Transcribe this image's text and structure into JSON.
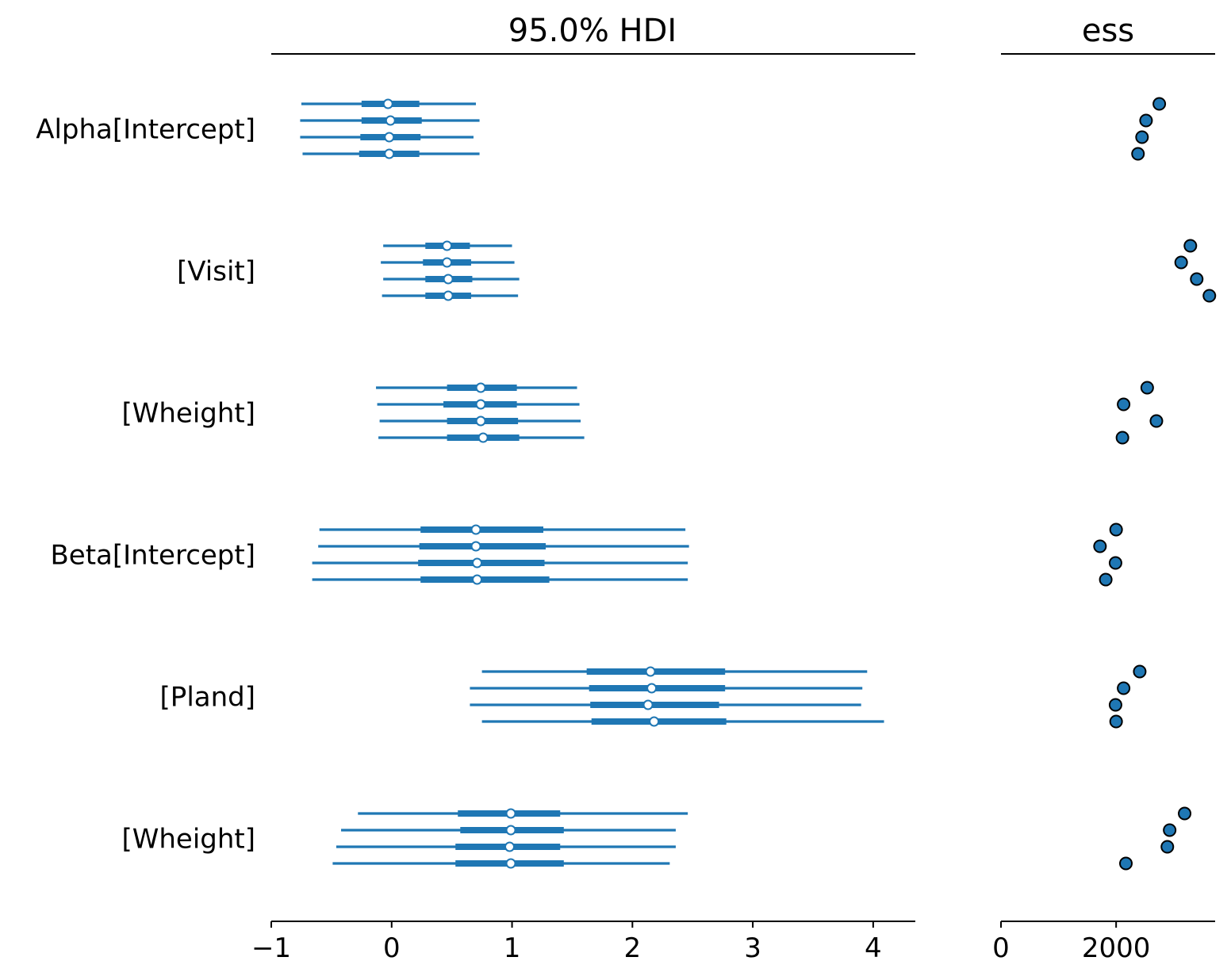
{
  "chart_data": {
    "type": "forest",
    "grid": false,
    "legend": "none",
    "rows": [
      "Alpha[Intercept]",
      "[Visit]",
      "[Wheight]",
      "Beta[Intercept]",
      "[Pland]",
      "[Wheight]"
    ],
    "colors": {
      "interval": "#1f77b4",
      "median_fill": "#ffffff",
      "ess_marker": "#1f77b4",
      "ess_edge": "#000000",
      "axis": "#000000"
    },
    "hdi_panel": {
      "title": "95.0% HDI",
      "xlim": [
        -1,
        4.35
      ],
      "xticks": [
        -1,
        0,
        1,
        2,
        3,
        4
      ],
      "xtick_labels": [
        "−1",
        "0",
        "1",
        "2",
        "3",
        "4"
      ],
      "series": [
        {
          "row": 0,
          "chains": [
            {
              "hdi95": [
                -0.75,
                0.7
              ],
              "hdi50": [
                -0.25,
                0.23
              ],
              "median": -0.03
            },
            {
              "hdi95": [
                -0.76,
                0.73
              ],
              "hdi50": [
                -0.25,
                0.25
              ],
              "median": -0.01
            },
            {
              "hdi95": [
                -0.76,
                0.68
              ],
              "hdi50": [
                -0.26,
                0.24
              ],
              "median": -0.02
            },
            {
              "hdi95": [
                -0.74,
                0.73
              ],
              "hdi50": [
                -0.27,
                0.23
              ],
              "median": -0.02
            }
          ]
        },
        {
          "row": 1,
          "chains": [
            {
              "hdi95": [
                -0.07,
                1.0
              ],
              "hdi50": [
                0.28,
                0.65
              ],
              "median": 0.46
            },
            {
              "hdi95": [
                -0.09,
                1.02
              ],
              "hdi50": [
                0.26,
                0.66
              ],
              "median": 0.46
            },
            {
              "hdi95": [
                -0.07,
                1.06
              ],
              "hdi50": [
                0.28,
                0.67
              ],
              "median": 0.47
            },
            {
              "hdi95": [
                -0.08,
                1.05
              ],
              "hdi50": [
                0.28,
                0.66
              ],
              "median": 0.47
            }
          ]
        },
        {
          "row": 2,
          "chains": [
            {
              "hdi95": [
                -0.13,
                1.54
              ],
              "hdi50": [
                0.46,
                1.04
              ],
              "median": 0.74
            },
            {
              "hdi95": [
                -0.12,
                1.56
              ],
              "hdi50": [
                0.43,
                1.04
              ],
              "median": 0.74
            },
            {
              "hdi95": [
                -0.1,
                1.57
              ],
              "hdi50": [
                0.46,
                1.05
              ],
              "median": 0.74
            },
            {
              "hdi95": [
                -0.11,
                1.6
              ],
              "hdi50": [
                0.46,
                1.06
              ],
              "median": 0.76
            }
          ]
        },
        {
          "row": 3,
          "chains": [
            {
              "hdi95": [
                -0.6,
                2.44
              ],
              "hdi50": [
                0.24,
                1.26
              ],
              "median": 0.7
            },
            {
              "hdi95": [
                -0.61,
                2.47
              ],
              "hdi50": [
                0.23,
                1.28
              ],
              "median": 0.7
            },
            {
              "hdi95": [
                -0.66,
                2.46
              ],
              "hdi50": [
                0.22,
                1.27
              ],
              "median": 0.71
            },
            {
              "hdi95": [
                -0.66,
                2.46
              ],
              "hdi50": [
                0.24,
                1.31
              ],
              "median": 0.71
            }
          ]
        },
        {
          "row": 4,
          "chains": [
            {
              "hdi95": [
                0.75,
                3.95
              ],
              "hdi50": [
                1.62,
                2.77
              ],
              "median": 2.15
            },
            {
              "hdi95": [
                0.65,
                3.91
              ],
              "hdi50": [
                1.64,
                2.77
              ],
              "median": 2.16
            },
            {
              "hdi95": [
                0.65,
                3.9
              ],
              "hdi50": [
                1.65,
                2.72
              ],
              "median": 2.13
            },
            {
              "hdi95": [
                0.75,
                4.09
              ],
              "hdi50": [
                1.66,
                2.78
              ],
              "median": 2.18
            }
          ]
        },
        {
          "row": 5,
          "chains": [
            {
              "hdi95": [
                -0.28,
                2.46
              ],
              "hdi50": [
                0.55,
                1.4
              ],
              "median": 0.99
            },
            {
              "hdi95": [
                -0.42,
                2.36
              ],
              "hdi50": [
                0.57,
                1.43
              ],
              "median": 0.99
            },
            {
              "hdi95": [
                -0.46,
                2.36
              ],
              "hdi50": [
                0.53,
                1.4
              ],
              "median": 0.98
            },
            {
              "hdi95": [
                -0.49,
                2.31
              ],
              "hdi50": [
                0.53,
                1.43
              ],
              "median": 0.99
            }
          ]
        }
      ]
    },
    "ess_panel": {
      "title": "ess",
      "xlim": [
        0,
        3720
      ],
      "xticks": [
        0,
        2000
      ],
      "xtick_labels": [
        "0",
        "2000"
      ],
      "series": [
        {
          "row": 0,
          "values": [
            2750,
            2520,
            2450,
            2380
          ]
        },
        {
          "row": 1,
          "values": [
            3290,
            3130,
            3400,
            3620
          ]
        },
        {
          "row": 2,
          "values": [
            2540,
            2130,
            2700,
            2110
          ]
        },
        {
          "row": 3,
          "values": [
            2000,
            1720,
            1990,
            1820
          ]
        },
        {
          "row": 4,
          "values": [
            2410,
            2130,
            1990,
            2000
          ]
        },
        {
          "row": 5,
          "values": [
            3190,
            2930,
            2890,
            2170
          ]
        }
      ]
    }
  }
}
